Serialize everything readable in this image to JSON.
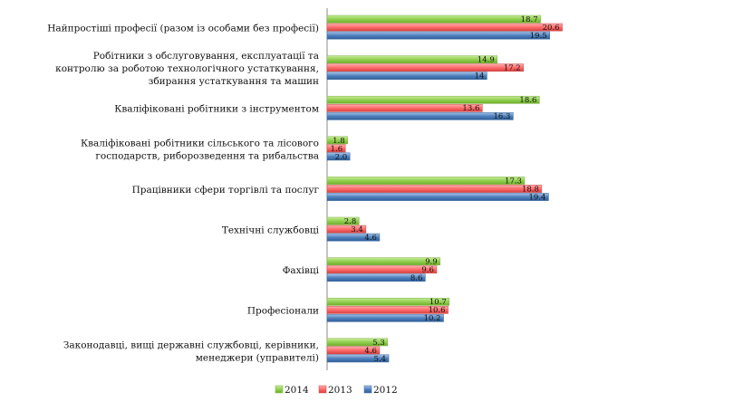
{
  "chart_data": {
    "type": "bar",
    "orientation": "horizontal",
    "categories": [
      [
        "Найпростіші професії (разом із особами без професії)"
      ],
      [
        "Робітники з обслуговування, експлуатації та",
        "контролю за роботою технологічного  устаткування,",
        "збирання устаткування та машин"
      ],
      [
        "Кваліфіковані робітники з інструментом"
      ],
      [
        "Кваліфіковані робітники сільського та лісового",
        "господарств, риборозведення та рибальства"
      ],
      [
        "Працівники сфери торгівлі та послуг"
      ],
      [
        "Технічні службовці"
      ],
      [
        "Фахівці"
      ],
      [
        "Професіонали"
      ],
      [
        "Законодавці, вищі державні службовці, керівники,",
        "менеджери (управителі)"
      ]
    ],
    "series": [
      {
        "name": "2014",
        "color": "#92d050",
        "values": [
          18.7,
          14.9,
          18.6,
          1.8,
          17.3,
          2.8,
          9.9,
          10.7,
          5.3
        ],
        "labels": [
          "18.7",
          "14.9",
          "18.6",
          "1.8",
          "17.3",
          "2.8",
          "9.9",
          "10.7",
          "5.3"
        ]
      },
      {
        "name": "2013",
        "color": "#ff6b6b",
        "values": [
          20.6,
          17.2,
          13.6,
          1.6,
          18.8,
          3.4,
          9.6,
          10.6,
          4.6
        ],
        "labels": [
          "20.6",
          "17.2",
          "13.6",
          "1.6",
          "18.8",
          "3.4",
          "9.6",
          "10.6",
          "4.6"
        ]
      },
      {
        "name": "2012",
        "color": "#4f81bd",
        "values": [
          19.5,
          14,
          16.3,
          2.0,
          19.4,
          4.6,
          8.6,
          10.2,
          5.4
        ],
        "labels": [
          "19.5",
          "14",
          "16.3",
          "2.0",
          "19.4",
          "4.6",
          "8.6",
          "10.2",
          "5.4"
        ]
      }
    ],
    "xlim": [
      0,
      22
    ],
    "grid": false,
    "legend_position": "bottom"
  }
}
